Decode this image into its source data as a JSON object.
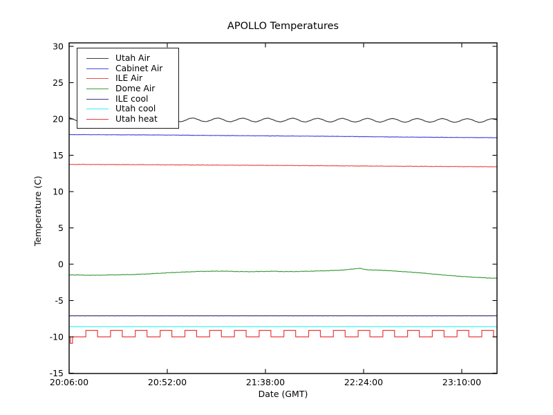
{
  "chart_data": {
    "type": "line",
    "title": "APOLLO Temperatures",
    "xlabel": "Date (GMT)",
    "ylabel": "Temperature (C)",
    "ylim": [
      -15,
      30
    ],
    "grid": false,
    "legend_position": "upper left",
    "yticks": [
      30,
      25,
      20,
      15,
      10,
      5,
      0,
      -5,
      -10,
      -15
    ],
    "xticks": {
      "labels": [
        "20:06:00",
        "20:52:00",
        "21:38:00",
        "22:24:00",
        "23:10:00"
      ],
      "minutes": [
        0,
        46,
        92,
        138,
        184
      ],
      "interval_minutes": 46
    },
    "x_range_minutes": [
      0,
      200.5
    ],
    "series": [
      {
        "name": "Utah Air",
        "slug": "utah-air",
        "color": "#3d3d3d",
        "pattern": "wave",
        "mean_start": 19.92,
        "mean_end": 19.78,
        "amplitude": 0.24,
        "period_minutes": 11.7,
        "phase_rad": 1.9,
        "jitter": 0.02,
        "summary": "oscillates between ~19.5 and ~20.0 C"
      },
      {
        "name": "Cabinet Air",
        "slug": "cabinet-air",
        "color": "#4747dd",
        "pattern": "trend",
        "points": [
          [
            0,
            17.85
          ],
          [
            40,
            17.8
          ],
          [
            80,
            17.7
          ],
          [
            120,
            17.62
          ],
          [
            160,
            17.5
          ],
          [
            200.5,
            17.42
          ]
        ],
        "jitter": 0.015
      },
      {
        "name": "ILE Air",
        "slug": "ile-air",
        "color": "#ec4a4a",
        "pattern": "trend",
        "points": [
          [
            0,
            13.75
          ],
          [
            50,
            13.68
          ],
          [
            100,
            13.6
          ],
          [
            150,
            13.5
          ],
          [
            200.5,
            13.42
          ]
        ],
        "jitter": 0.02
      },
      {
        "name": "Dome Air",
        "slug": "dome-air",
        "color": "#3d9b3d",
        "pattern": "trend",
        "points": [
          [
            0,
            -1.45
          ],
          [
            6,
            -1.5
          ],
          [
            12,
            -1.52
          ],
          [
            18,
            -1.48
          ],
          [
            24,
            -1.45
          ],
          [
            30,
            -1.42
          ],
          [
            36,
            -1.35
          ],
          [
            42,
            -1.25
          ],
          [
            48,
            -1.15
          ],
          [
            54,
            -1.08
          ],
          [
            60,
            -1.0
          ],
          [
            66,
            -0.97
          ],
          [
            72,
            -0.95
          ],
          [
            78,
            -1.0
          ],
          [
            84,
            -1.03
          ],
          [
            90,
            -1.0
          ],
          [
            96,
            -0.97
          ],
          [
            102,
            -1.02
          ],
          [
            108,
            -1.0
          ],
          [
            114,
            -0.95
          ],
          [
            120,
            -0.9
          ],
          [
            126,
            -0.84
          ],
          [
            130,
            -0.76
          ],
          [
            134,
            -0.62
          ],
          [
            136,
            -0.56
          ],
          [
            139,
            -0.74
          ],
          [
            143,
            -0.8
          ],
          [
            148,
            -0.85
          ],
          [
            153,
            -0.95
          ],
          [
            158,
            -1.05
          ],
          [
            163,
            -1.15
          ],
          [
            168,
            -1.28
          ],
          [
            173,
            -1.42
          ],
          [
            178,
            -1.55
          ],
          [
            183,
            -1.66
          ],
          [
            188,
            -1.76
          ],
          [
            193,
            -1.84
          ],
          [
            197,
            -1.9
          ],
          [
            200.5,
            -1.93
          ]
        ],
        "jitter": 0.025
      },
      {
        "name": "ILE cool",
        "slug": "ile-cool",
        "color": "#3b3b78",
        "pattern": "trend",
        "points": [
          [
            0,
            -7.1
          ],
          [
            200.5,
            -7.1
          ]
        ],
        "jitter": 0.008
      },
      {
        "name": "Utah cool",
        "slug": "utah-cool",
        "color": "#2fefef",
        "pattern": "trend",
        "points": [
          [
            0,
            -8.6
          ],
          [
            200.5,
            -8.6
          ]
        ],
        "jitter": 0.0
      },
      {
        "name": "Utah heat",
        "slug": "utah-heat",
        "color": "#ea3a3a",
        "pattern": "square",
        "low": -10.0,
        "high": -9.1,
        "period_minutes": 11.6,
        "high_minutes": 5.5,
        "first_rise_minute": 7.8,
        "start_dip": {
          "from_minute": 0.5,
          "to_minute": 1.6,
          "value": -10.9
        },
        "jitter": 0.0
      }
    ]
  }
}
